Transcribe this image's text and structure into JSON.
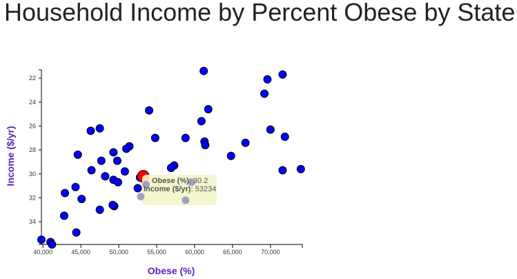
{
  "page": {
    "title": "Household Income by Percent Obese by State"
  },
  "colors": {
    "point": "#0000ff",
    "highlight": "#ff0000",
    "axis_title": "#5a1fb8",
    "tooltip_bg": "#f3f5c9",
    "faded_point": "#9ea3bd"
  },
  "tooltip": {
    "x_key": "Obese (%)",
    "x_value": "30.2",
    "y_key": "Income ($/yr)",
    "y_value": "53234"
  },
  "chart_data": {
    "type": "scatter",
    "title": "Household Income by Percent Obese by State",
    "xlabel": "Obese (%)",
    "ylabel": "Income ($/yr)",
    "xlim": [
      39800,
      74200
    ],
    "ylim": [
      21.3,
      35.9
    ],
    "y_reversed": true,
    "x_ticks": [
      "40,000",
      "45,000",
      "50,000",
      "55,000",
      "60,000",
      "65,000",
      "70,000"
    ],
    "x_tick_values": [
      40000,
      45000,
      50000,
      55000,
      60000,
      65000,
      70000
    ],
    "y_ticks": [
      "22",
      "24",
      "26",
      "28",
      "30",
      "32",
      "34"
    ],
    "y_tick_values": [
      22,
      24,
      26,
      28,
      30,
      32,
      34
    ],
    "highlighted": {
      "x": 53234,
      "y": 30.2
    },
    "points": [
      {
        "x": 61200,
        "y": 21.4
      },
      {
        "x": 71600,
        "y": 21.7
      },
      {
        "x": 69600,
        "y": 22.1
      },
      {
        "x": 69200,
        "y": 23.3
      },
      {
        "x": 54000,
        "y": 24.7
      },
      {
        "x": 61800,
        "y": 24.6
      },
      {
        "x": 60900,
        "y": 25.6
      },
      {
        "x": 47500,
        "y": 26.2
      },
      {
        "x": 46300,
        "y": 26.4
      },
      {
        "x": 70000,
        "y": 26.3
      },
      {
        "x": 54800,
        "y": 27.0
      },
      {
        "x": 58800,
        "y": 27.0
      },
      {
        "x": 71900,
        "y": 26.9
      },
      {
        "x": 61300,
        "y": 27.3
      },
      {
        "x": 61400,
        "y": 27.6
      },
      {
        "x": 66700,
        "y": 27.4
      },
      {
        "x": 51400,
        "y": 27.7
      },
      {
        "x": 51000,
        "y": 27.9
      },
      {
        "x": 49300,
        "y": 28.2
      },
      {
        "x": 44600,
        "y": 28.4
      },
      {
        "x": 64800,
        "y": 28.5
      },
      {
        "x": 49800,
        "y": 28.9
      },
      {
        "x": 47700,
        "y": 28.9
      },
      {
        "x": 57300,
        "y": 29.3
      },
      {
        "x": 56900,
        "y": 29.5
      },
      {
        "x": 46400,
        "y": 29.7
      },
      {
        "x": 50800,
        "y": 29.8
      },
      {
        "x": 71600,
        "y": 29.7
      },
      {
        "x": 74000,
        "y": 29.6
      },
      {
        "x": 48200,
        "y": 30.2
      },
      {
        "x": 52800,
        "y": 30.3
      },
      {
        "x": 49300,
        "y": 30.5
      },
      {
        "x": 49900,
        "y": 30.7
      },
      {
        "x": 52500,
        "y": 31.2
      },
      {
        "x": 44300,
        "y": 31.1
      },
      {
        "x": 42900,
        "y": 31.6
      },
      {
        "x": 45100,
        "y": 32.1
      },
      {
        "x": 49400,
        "y": 32.7
      },
      {
        "x": 49200,
        "y": 32.6
      },
      {
        "x": 47500,
        "y": 33.0
      },
      {
        "x": 42800,
        "y": 33.5
      },
      {
        "x": 44400,
        "y": 34.9
      },
      {
        "x": 39800,
        "y": 35.5
      },
      {
        "x": 41000,
        "y": 35.7
      },
      {
        "x": 41200,
        "y": 35.9
      }
    ],
    "faded_points": [
      {
        "x": 53600,
        "y": 30.9
      },
      {
        "x": 59600,
        "y": 30.7
      },
      {
        "x": 52900,
        "y": 31.9
      },
      {
        "x": 58800,
        "y": 32.2
      }
    ]
  }
}
